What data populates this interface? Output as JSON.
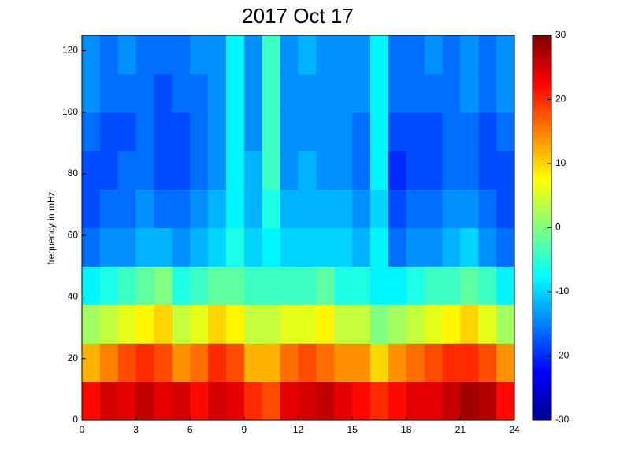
{
  "chart_data": {
    "type": "heatmap",
    "title": "2017 Oct 17",
    "ylabel": "frequency in mHz",
    "x": [
      0.5,
      1.5,
      2.5,
      3.5,
      4.5,
      5.5,
      6.5,
      7.5,
      8.5,
      9.5,
      10.5,
      11.5,
      12.5,
      13.5,
      14.5,
      15.5,
      16.5,
      17.5,
      18.5,
      19.5,
      20.5,
      21.5,
      22.5,
      23.5
    ],
    "y": [
      6.25,
      18.75,
      31.25,
      43.75,
      56.25,
      68.75,
      81.25,
      93.75,
      106.25,
      118.75
    ],
    "values": [
      [
        22,
        25,
        24,
        26,
        24,
        25,
        22,
        25,
        24,
        20,
        18,
        24,
        25,
        26,
        24,
        22,
        20,
        22,
        24,
        24,
        26,
        28,
        27,
        22
      ],
      [
        12,
        15,
        18,
        20,
        18,
        14,
        16,
        20,
        18,
        12,
        12,
        16,
        18,
        16,
        14,
        14,
        10,
        14,
        16,
        18,
        20,
        20,
        18,
        14
      ],
      [
        2,
        4,
        6,
        8,
        10,
        4,
        6,
        10,
        8,
        4,
        4,
        6,
        6,
        8,
        4,
        4,
        0,
        2,
        4,
        6,
        8,
        10,
        6,
        2
      ],
      [
        -8,
        -6,
        -4,
        -2,
        0,
        -6,
        -4,
        -2,
        -2,
        -4,
        -4,
        -4,
        -4,
        -2,
        -6,
        -6,
        -8,
        -8,
        -6,
        -4,
        -4,
        -2,
        -4,
        -8
      ],
      [
        -16,
        -14,
        -14,
        -12,
        -12,
        -14,
        -12,
        -10,
        -6,
        -10,
        -8,
        -10,
        -10,
        -10,
        -10,
        -12,
        -8,
        -16,
        -14,
        -14,
        -12,
        -10,
        -14,
        -16
      ],
      [
        -18,
        -16,
        -16,
        -14,
        -16,
        -16,
        -14,
        -12,
        -8,
        -12,
        -6,
        -12,
        -12,
        -12,
        -12,
        -14,
        -10,
        -18,
        -16,
        -16,
        -14,
        -14,
        -16,
        -18
      ],
      [
        -18,
        -18,
        -16,
        -16,
        -18,
        -18,
        -16,
        -14,
        -8,
        -12,
        -4,
        -14,
        -12,
        -14,
        -14,
        -16,
        -8,
        -20,
        -18,
        -18,
        -16,
        -16,
        -18,
        -18
      ],
      [
        -16,
        -18,
        -18,
        -16,
        -18,
        -18,
        -16,
        -14,
        -8,
        -14,
        -4,
        -14,
        -14,
        -14,
        -14,
        -16,
        -8,
        -18,
        -18,
        -18,
        -16,
        -16,
        -18,
        -16
      ],
      [
        -14,
        -16,
        -16,
        -16,
        -18,
        -16,
        -16,
        -14,
        -8,
        -14,
        -4,
        -14,
        -14,
        -14,
        -14,
        -14,
        -8,
        -16,
        -16,
        -16,
        -16,
        -14,
        -16,
        -14
      ],
      [
        -14,
        -16,
        -14,
        -16,
        -16,
        -16,
        -14,
        -14,
        -8,
        -14,
        -4,
        -14,
        -12,
        -14,
        -14,
        -14,
        -8,
        -16,
        -16,
        -14,
        -16,
        -14,
        -16,
        -14
      ]
    ],
    "xlim": [
      0,
      24
    ],
    "xticks": [
      0,
      3,
      6,
      9,
      12,
      15,
      18,
      21,
      24
    ],
    "ylim": [
      0,
      125
    ],
    "yticks": [
      0,
      20,
      40,
      60,
      80,
      100,
      120
    ],
    "clim": [
      -30,
      30
    ],
    "cticks": [
      -30,
      -20,
      -10,
      0,
      10,
      20,
      30
    ],
    "colormap": "jet"
  }
}
